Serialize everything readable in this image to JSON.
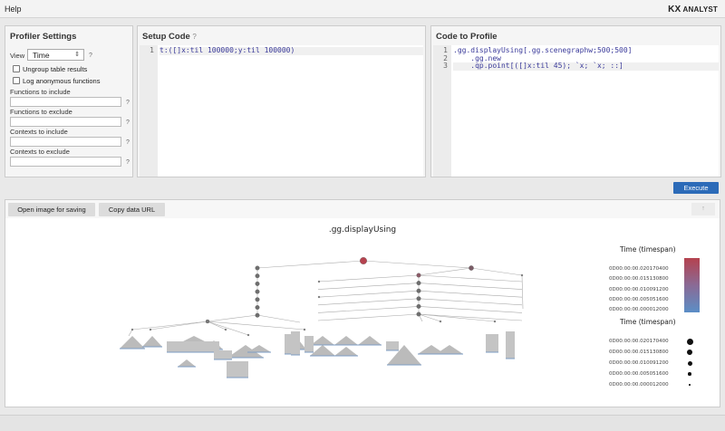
{
  "topbar": {
    "help": "Help",
    "logo_mark": "KX",
    "logo_text": "ANALYST"
  },
  "settings": {
    "title": "Profiler Settings",
    "view_label": "View",
    "view_value": "Time",
    "help": "?",
    "checkboxes": [
      {
        "label": "Ungroup table results",
        "checked": false
      },
      {
        "label": "Log anonymous functions",
        "checked": false
      }
    ],
    "fields": [
      {
        "label": "Functions to include",
        "value": ""
      },
      {
        "label": "Functions to exclude",
        "value": ""
      },
      {
        "label": "Contexts to include",
        "value": ""
      },
      {
        "label": "Contexts to exclude",
        "value": ""
      }
    ]
  },
  "setup": {
    "title": "Setup Code",
    "help": "?",
    "line_numbers": [
      "1"
    ],
    "lines": [
      "t:([]x:til 100000;y:til 100000)"
    ]
  },
  "profile": {
    "title": "Code to Profile",
    "line_numbers": [
      "1",
      "2",
      "3"
    ],
    "lines": [
      ".gg.displayUsing[.gg.scenegraphw;500;500]",
      "    .gg.new",
      "    .qp.point[([]x:til 45); `x; `x; ::]"
    ]
  },
  "execute_label": "Execute",
  "output": {
    "open_image": "Open image for saving",
    "copy_url": "Copy data URL",
    "up_arrow": "↑",
    "graph_title": ".gg.displayUsing",
    "legend_color": {
      "title": "Time (timespan)",
      "labels": [
        "0D00:00:00.020170400",
        "0D00:00:00.015130800",
        "0D00:00:00.010091200",
        "0D00:00:00.005051600",
        "0D00:00:00.000012000"
      ],
      "high_color": "#b5424f",
      "low_color": "#5b8ec6"
    },
    "legend_size": {
      "title": "Time (timespan)",
      "labels": [
        "0D00:00:00.020170400",
        "0D00:00:00.015130800",
        "0D00:00:00.010091200",
        "0D00:00:00.005051600",
        "0D00:00:00.000012000"
      ]
    }
  }
}
